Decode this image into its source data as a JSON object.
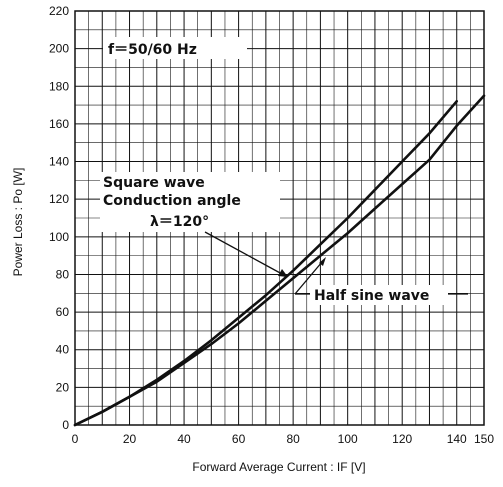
{
  "chart_data": {
    "type": "line",
    "title": "",
    "xlabel": "Forward Average Current : IF [V]",
    "ylabel": "Power Loss : Po [W]",
    "xlim": [
      0,
      150
    ],
    "ylim": [
      0,
      220
    ],
    "x_ticks": [
      "0",
      "20",
      "40",
      "60",
      "80",
      "100",
      "120",
      "140",
      "150"
    ],
    "y_ticks": [
      "0",
      "20",
      "40",
      "60",
      "80",
      "100",
      "120",
      "140",
      "160",
      "180",
      "200",
      "220"
    ],
    "grid": true,
    "series": [
      {
        "name": "Square wave Conduction angle λ=120°",
        "x": [
          0,
          10,
          20,
          30,
          40,
          50,
          60,
          70,
          80,
          90,
          100,
          110,
          120,
          130,
          140
        ],
        "y": [
          0,
          7,
          15,
          24,
          34,
          45,
          57,
          69,
          82,
          96,
          110,
          125,
          140,
          155,
          172
        ]
      },
      {
        "name": "Half sine wave",
        "x": [
          0,
          10,
          20,
          30,
          40,
          50,
          60,
          70,
          80,
          90,
          100,
          110,
          120,
          130,
          140,
          150
        ],
        "y": [
          0,
          7,
          15,
          23,
          33,
          43,
          54,
          66,
          78,
          90,
          102,
          115,
          128,
          141,
          159,
          175
        ]
      }
    ],
    "annotations": {
      "frequency": "f＝50/60 Hz",
      "square_line1": "Square wave",
      "square_line2": "Conduction angle",
      "square_line3": "λ＝120°",
      "half_sine": "Half sine wave"
    },
    "line_color": "#111111",
    "grid_color": "#111111"
  }
}
